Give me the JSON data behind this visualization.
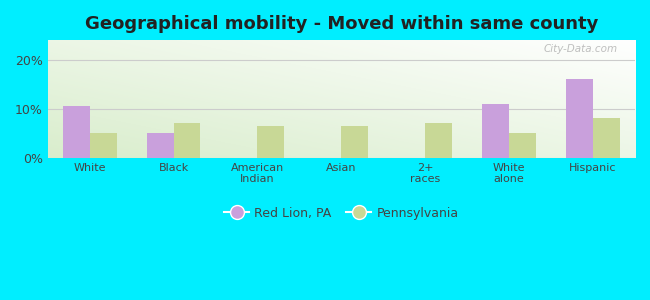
{
  "title": "Geographical mobility - Moved within same county",
  "categories": [
    "White",
    "Black",
    "American\nIndian",
    "Asian",
    "2+\nraces",
    "White\nalone",
    "Hispanic"
  ],
  "red_lion": [
    10.5,
    5.0,
    0.0,
    0.0,
    0.0,
    11.0,
    16.0
  ],
  "pennsylvania": [
    5.0,
    7.0,
    6.5,
    6.5,
    7.2,
    5.0,
    8.2
  ],
  "color_red_lion": "#c9a0dc",
  "color_pennsylvania": "#c8d896",
  "bg_outer": "#00eeff",
  "yticks": [
    0,
    10,
    20
  ],
  "ytick_labels": [
    "0%",
    "10%",
    "20%"
  ],
  "ylim": [
    0,
    24
  ],
  "legend_label_rl": "Red Lion, PA",
  "legend_label_pa": "Pennsylvania",
  "title_fontsize": 13,
  "bar_width": 0.32,
  "grid_color": "#cccccc",
  "watermark": "City-Data.com",
  "text_color": "#444444"
}
